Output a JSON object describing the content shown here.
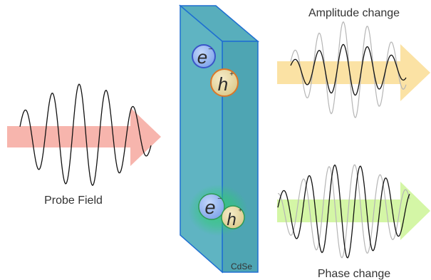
{
  "labels": {
    "probe": "Probe Field",
    "amplitude": "Amplitude change",
    "phase": "Phase change",
    "material": "CdSe"
  },
  "particles": {
    "electron_symbol": "e",
    "electron_charge": "−",
    "hole_symbol": "h",
    "hole_charge": "+"
  },
  "colors": {
    "probe_arrow": "#f7b5ad",
    "amplitude_arrow": "#fbe2a4",
    "phase_arrow": "#d4f6a6",
    "slab_front": "#5fb4c2",
    "slab_side": "#4ea5b3",
    "slab_edge": "#1f6fd1",
    "electron_fill": "#8fb4f0",
    "electron_edge": "#3a55c8",
    "hole_fill": "#e8d59a",
    "hole_edge": "#d9782a",
    "exciton_glow": "#2ecc71"
  }
}
